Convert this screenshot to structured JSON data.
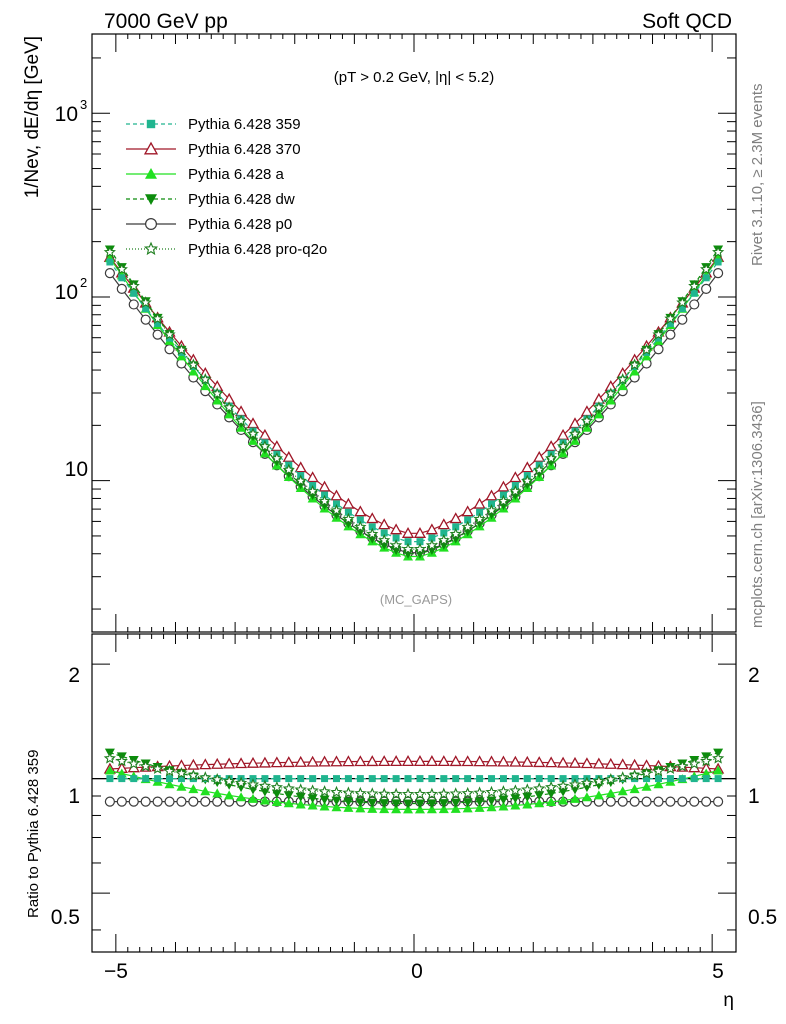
{
  "header": {
    "left": "7000 GeV pp",
    "right": "Soft QCD"
  },
  "side_labels": {
    "rivet": "Rivet 3.1.10, ≥ 2.3M events",
    "mcplots": "mcplots.cern.ch [arXiv:1306.3436]"
  },
  "annotation": {
    "cuts": "(pT > 0.2 GeV, |η| < 5.2)",
    "watermark": "(MC_GAPS)"
  },
  "axes": {
    "ylabel_main": "1/Nev, dE/dη [GeV]",
    "ylabel_ratio": "Ratio to Pythia 6.428 359",
    "xlabel": "η",
    "x_ticks": [
      "−5",
      "0",
      "5"
    ],
    "y_ticks_main": [
      "10",
      "10",
      "10"
    ],
    "y_ticks_main_exp": [
      "",
      "2",
      "3"
    ],
    "y_ticks_ratio": [
      "0.5",
      "1",
      "2"
    ]
  },
  "legend": [
    {
      "label": "Pythia 6.428 359",
      "color": "#20b58f",
      "marker": "square",
      "dash": "4,3"
    },
    {
      "label": "Pythia 6.428 370",
      "color": "#a01728",
      "marker": "triangle-open",
      "dash": ""
    },
    {
      "label": "Pythia 6.428 a",
      "color": "#21e021",
      "marker": "triangle",
      "dash": ""
    },
    {
      "label": "Pythia 6.428 dw",
      "color": "#0c8c0c",
      "marker": "triangle-down",
      "dash": "4,3"
    },
    {
      "label": "Pythia 6.428 p0",
      "color": "#3c3c3c",
      "marker": "circle-open",
      "dash": ""
    },
    {
      "label": "Pythia 6.428 pro-q2o",
      "color": "#1f7f1f",
      "marker": "star",
      "dash": "1,2"
    }
  ],
  "chart_data": {
    "type": "line",
    "x_range": [
      -5.4,
      5.4
    ],
    "ylim_main": [
      1.5,
      2700
    ],
    "ylim_ratio": [
      0.35,
      2.4
    ],
    "log_y": true,
    "grid": false,
    "legend_position": "top-left",
    "x_points": {
      "start": -5.1,
      "step": 0.2,
      "count": 52
    },
    "center_359": 4.6,
    "edge_359": 155,
    "series": [
      {
        "name": "Pythia 6.428 359",
        "ratio_center": 1.0,
        "ratio_edge": 1.0
      },
      {
        "name": "Pythia 6.428 370",
        "ratio_center": 1.11,
        "ratio_edge": 1.06
      },
      {
        "name": "Pythia 6.428 a",
        "ratio_center": 0.83,
        "ratio_edge": 1.05
      },
      {
        "name": "Pythia 6.428 dw",
        "ratio_center": 0.86,
        "ratio_edge": 1.17
      },
      {
        "name": "Pythia 6.428 p0",
        "ratio_center": 0.87,
        "ratio_edge": 0.87
      },
      {
        "name": "Pythia 6.428 pro-q2o",
        "ratio_center": 0.91,
        "ratio_edge": 1.13
      }
    ]
  }
}
